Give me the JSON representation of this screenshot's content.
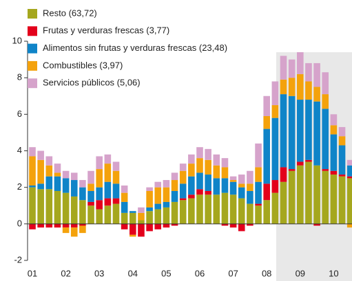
{
  "chart_data": {
    "type": "bar",
    "stacked": true,
    "categories": [
      "01",
      null,
      null,
      null,
      "02",
      null,
      null,
      null,
      "03",
      null,
      null,
      null,
      "04",
      null,
      null,
      null,
      "05",
      null,
      null,
      null,
      "06",
      null,
      null,
      null,
      "07",
      null,
      null,
      null,
      "08",
      null,
      null,
      null,
      "09",
      null,
      null,
      null,
      "10",
      null,
      null
    ],
    "series": [
      {
        "name": "Resto (63,72)",
        "color": "#a5a71e",
        "values": [
          2.0,
          1.9,
          1.9,
          1.8,
          1.7,
          1.5,
          1.3,
          1.0,
          0.8,
          1.0,
          1.1,
          0.6,
          0.6,
          0.2,
          0.7,
          0.8,
          0.9,
          1.2,
          1.3,
          1.4,
          1.6,
          1.6,
          1.6,
          1.7,
          1.6,
          1.4,
          1.1,
          1.0,
          1.3,
          1.7,
          2.3,
          2.9,
          3.2,
          3.4,
          3.2,
          2.9,
          2.7,
          2.6,
          2.5
        ]
      },
      {
        "name": "Frutas y verduras frescas (3,77)",
        "color": "#e3001b",
        "values": [
          -0.3,
          -0.2,
          -0.2,
          -0.2,
          -0.2,
          -0.2,
          -0.1,
          0.2,
          0.5,
          0.4,
          0.3,
          -0.3,
          -0.6,
          -0.7,
          -0.4,
          -0.3,
          -0.2,
          -0.1,
          0.1,
          0.2,
          0.3,
          0.2,
          0.0,
          -0.1,
          -0.2,
          -0.4,
          -0.1,
          0.1,
          0.9,
          0.7,
          0.8,
          0.1,
          0.2,
          0.1,
          -0.1,
          0.1,
          0.2,
          0.1,
          0.1
        ]
      },
      {
        "name": "Alimentos sin frutas y verduras frescas (23,48)",
        "color": "#0f84c8",
        "values": [
          0.1,
          0.3,
          0.7,
          0.8,
          0.8,
          0.9,
          0.7,
          0.6,
          0.7,
          0.9,
          0.8,
          0.6,
          0.1,
          0.0,
          0.2,
          0.3,
          0.3,
          0.6,
          0.8,
          1.0,
          0.9,
          0.9,
          0.9,
          0.8,
          0.7,
          0.6,
          0.7,
          1.2,
          3.0,
          3.4,
          4.0,
          4.0,
          3.4,
          3.3,
          3.5,
          3.3,
          2.0,
          1.6,
          0.6
        ]
      },
      {
        "name": "Combustibles (3,97)",
        "color": "#f4a20c",
        "values": [
          1.6,
          1.3,
          0.6,
          0.2,
          -0.3,
          -0.5,
          -0.4,
          0.4,
          1.0,
          1.0,
          0.7,
          0.5,
          -0.1,
          0.4,
          0.9,
          0.9,
          0.8,
          0.6,
          0.7,
          0.7,
          0.8,
          0.8,
          0.7,
          0.6,
          0.1,
          0.2,
          0.4,
          0.8,
          0.7,
          0.7,
          0.8,
          1.0,
          1.4,
          1.0,
          0.8,
          0.8,
          0.5,
          0.5,
          -0.2
        ]
      },
      {
        "name": "Servicios públicos (5,06)",
        "color": "#d6a3cb",
        "values": [
          0.5,
          0.5,
          0.5,
          0.5,
          0.4,
          0.4,
          0.4,
          0.7,
          0.7,
          0.5,
          0.5,
          0.4,
          0.0,
          0.3,
          0.2,
          0.3,
          0.4,
          0.4,
          0.4,
          0.5,
          0.6,
          0.6,
          0.6,
          0.5,
          0.2,
          0.5,
          0.7,
          1.3,
          1.1,
          1.3,
          1.3,
          1.0,
          1.2,
          1.0,
          1.3,
          1.2,
          0.6,
          0.5,
          0.3
        ]
      }
    ],
    "ylim": [
      -2,
      10
    ],
    "yticks": [
      -2,
      0,
      2,
      4,
      6,
      8,
      10
    ],
    "grid": false
  }
}
